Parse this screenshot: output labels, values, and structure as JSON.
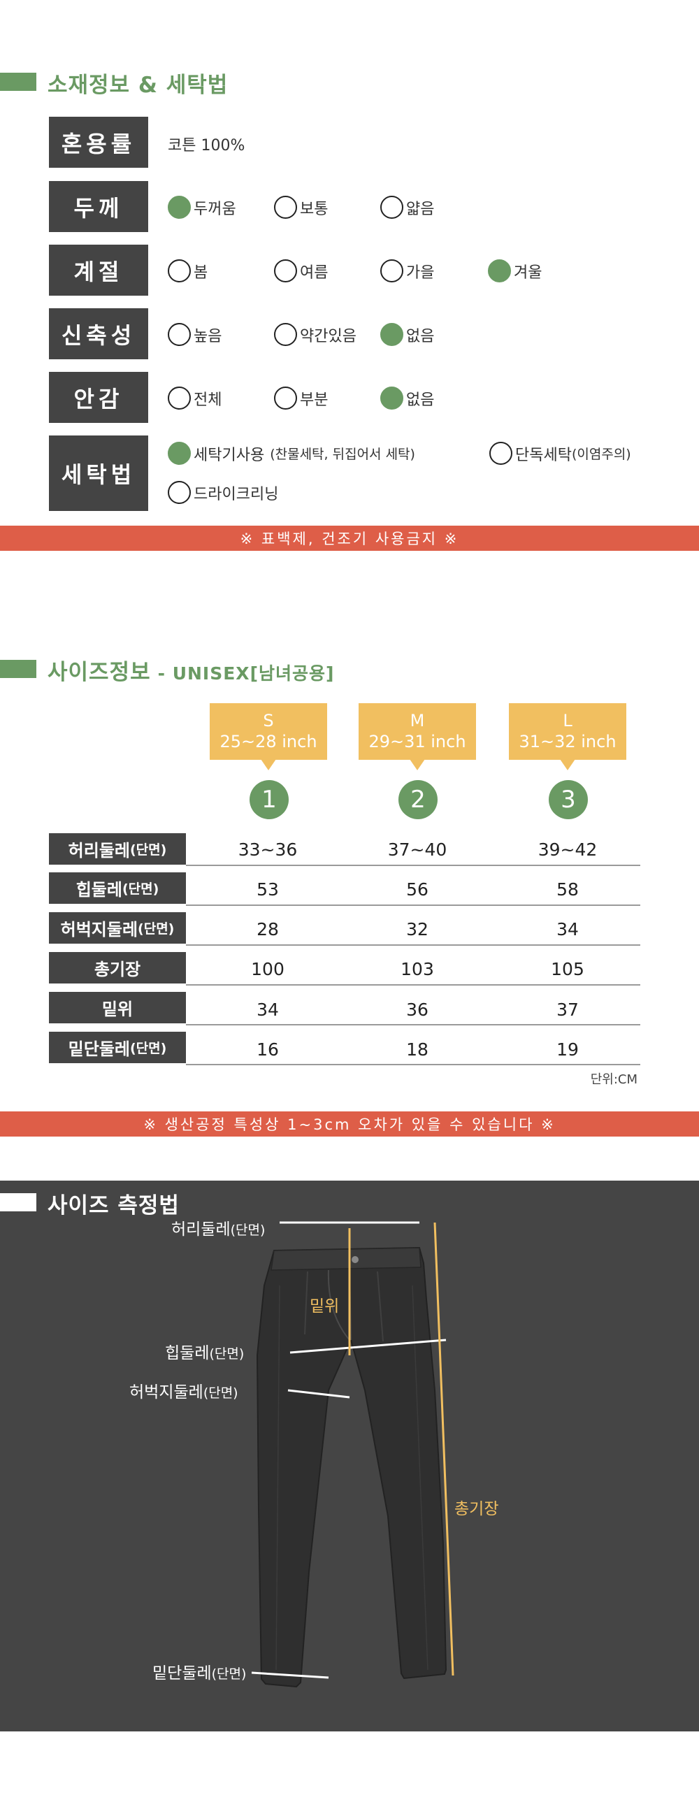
{
  "material": {
    "title": "소재정보 & 세탁법",
    "blend": {
      "label": "혼용률",
      "value": "코튼 100%"
    },
    "rows": [
      {
        "label": "두께",
        "options": [
          {
            "text": "두꺼움",
            "on": true
          },
          {
            "text": "보통",
            "on": false
          },
          {
            "text": "얇음",
            "on": false
          }
        ]
      },
      {
        "label": "계절",
        "options": [
          {
            "text": "봄",
            "on": false
          },
          {
            "text": "여름",
            "on": false
          },
          {
            "text": "가을",
            "on": false
          },
          {
            "text": "겨울",
            "on": true
          }
        ]
      },
      {
        "label": "신축성",
        "options": [
          {
            "text": "높음",
            "on": false
          },
          {
            "text": "약간있음",
            "on": false
          },
          {
            "text": "없음",
            "on": true
          }
        ]
      },
      {
        "label": "안감",
        "options": [
          {
            "text": "전체",
            "on": false
          },
          {
            "text": "부분",
            "on": false
          },
          {
            "text": "없음",
            "on": true
          }
        ]
      }
    ],
    "wash": {
      "label": "세탁법",
      "opt1": {
        "text": "세탁기사용",
        "note": "(찬물세탁, 뒤집어서 세탁)",
        "on": true
      },
      "opt2": {
        "text": "단독세탁",
        "note": "(이염주의)",
        "on": false
      },
      "opt3": {
        "text": "드라이크리닝",
        "on": false
      }
    },
    "warning": "※ 표백제, 건조기 사용금지 ※"
  },
  "size_info": {
    "title": "사이즈정보",
    "subtitle": "- UNISEX[남녀공용]",
    "sizes": [
      {
        "name": "S",
        "range": "25~28 inch",
        "num": "1"
      },
      {
        "name": "M",
        "range": "29~31 inch",
        "num": "2"
      },
      {
        "name": "L",
        "range": "31~32 inch",
        "num": "3"
      }
    ],
    "rows": [
      {
        "label": "허리둘레",
        "paren": "(단면)",
        "values": [
          "33~36",
          "37~40",
          "39~42"
        ]
      },
      {
        "label": "힙둘레",
        "paren": "(단면)",
        "values": [
          "53",
          "56",
          "58"
        ]
      },
      {
        "label": "허벅지둘레",
        "paren": "(단면)",
        "values": [
          "28",
          "32",
          "34"
        ]
      },
      {
        "label": "총기장",
        "paren": "",
        "values": [
          "100",
          "103",
          "105"
        ]
      },
      {
        "label": "밑위",
        "paren": "",
        "values": [
          "34",
          "36",
          "37"
        ]
      },
      {
        "label": "밑단둘레",
        "paren": "(단면)",
        "values": [
          "16",
          "18",
          "19"
        ]
      }
    ],
    "unit": "단위:CM",
    "warning": "※ 생산공정 특성상 1~3cm 오차가 있을 수 있습니다 ※"
  },
  "measure": {
    "title": "사이즈 측정법",
    "labels": {
      "waist": "허리둘레",
      "waist_paren": "(단면)",
      "hip": "힙둘레",
      "hip_paren": "(단면)",
      "thigh": "허벅지둘레",
      "thigh_paren": "(단면)",
      "hem": "밑단둘레",
      "hem_paren": "(단면)",
      "rise": "밑위",
      "length": "총기장"
    },
    "colors": {
      "accent": "#f1bf60",
      "line": "#ffffff",
      "pants": "#2f2f2f"
    }
  },
  "colors": {
    "green": "#6a9a63",
    "red": "#de5e48",
    "dark": "#444444",
    "yellow": "#f1bf60"
  }
}
